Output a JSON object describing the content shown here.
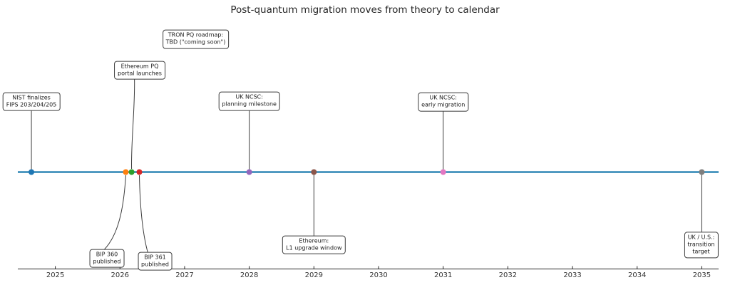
{
  "chart_data": {
    "type": "timeline",
    "title": "Post-quantum migration moves from theory to calendar",
    "xlabel": "",
    "ylabel": "",
    "x_ticks": [
      2025,
      2026,
      2027,
      2028,
      2029,
      2030,
      2031,
      2032,
      2033,
      2034,
      2035
    ],
    "xlim": [
      2024.42,
      2035.26
    ],
    "legend": "none",
    "grid": false,
    "events": [
      {
        "id": "nist-fips",
        "date": 2024.63,
        "label": "NIST finalizes\nFIPS 203/204/205",
        "color": "#1f77b4",
        "side": "above"
      },
      {
        "id": "bip-360",
        "date": 2026.09,
        "label": "BIP 360\npublished",
        "color": "#ff7f0e",
        "side": "below"
      },
      {
        "id": "eth-portal",
        "date": 2026.18,
        "label": "Ethereum PQ\nportal launches",
        "color": "#2ca02c",
        "side": "above"
      },
      {
        "id": "bip-361",
        "date": 2026.3,
        "label": "BIP 361\npublished",
        "color": "#d62728",
        "side": "below"
      },
      {
        "id": "uk-ncsc-planning",
        "date": 2028.0,
        "label": "UK NCSC:\nplanning milestone",
        "color": "#9467bd",
        "side": "above"
      },
      {
        "id": "eth-l1",
        "date": 2029.0,
        "label": "Ethereum:\nL1 upgrade window",
        "color": "#8c564b",
        "side": "below"
      },
      {
        "id": "uk-ncsc-early",
        "date": 2031.0,
        "label": "UK NCSC:\nearly migration",
        "color": "#e377c2",
        "side": "above"
      },
      {
        "id": "uk-us-target",
        "date": 2035.0,
        "label": "UK / U.S.:\ntransition target",
        "color": "#7f7f7f",
        "side": "below"
      }
    ],
    "unplotted_annotations": [
      {
        "id": "tron-pq-roadmap",
        "label": "TRON PQ roadmap:\nTBD (\"coming soon\")"
      }
    ],
    "colors": {
      "timeline": "#2e86b5",
      "leader": "#3d3d3d",
      "axis": "#262626",
      "title_text": "#262626",
      "box_border": "#3c3c3c",
      "box_bg": "#ffffff"
    }
  }
}
